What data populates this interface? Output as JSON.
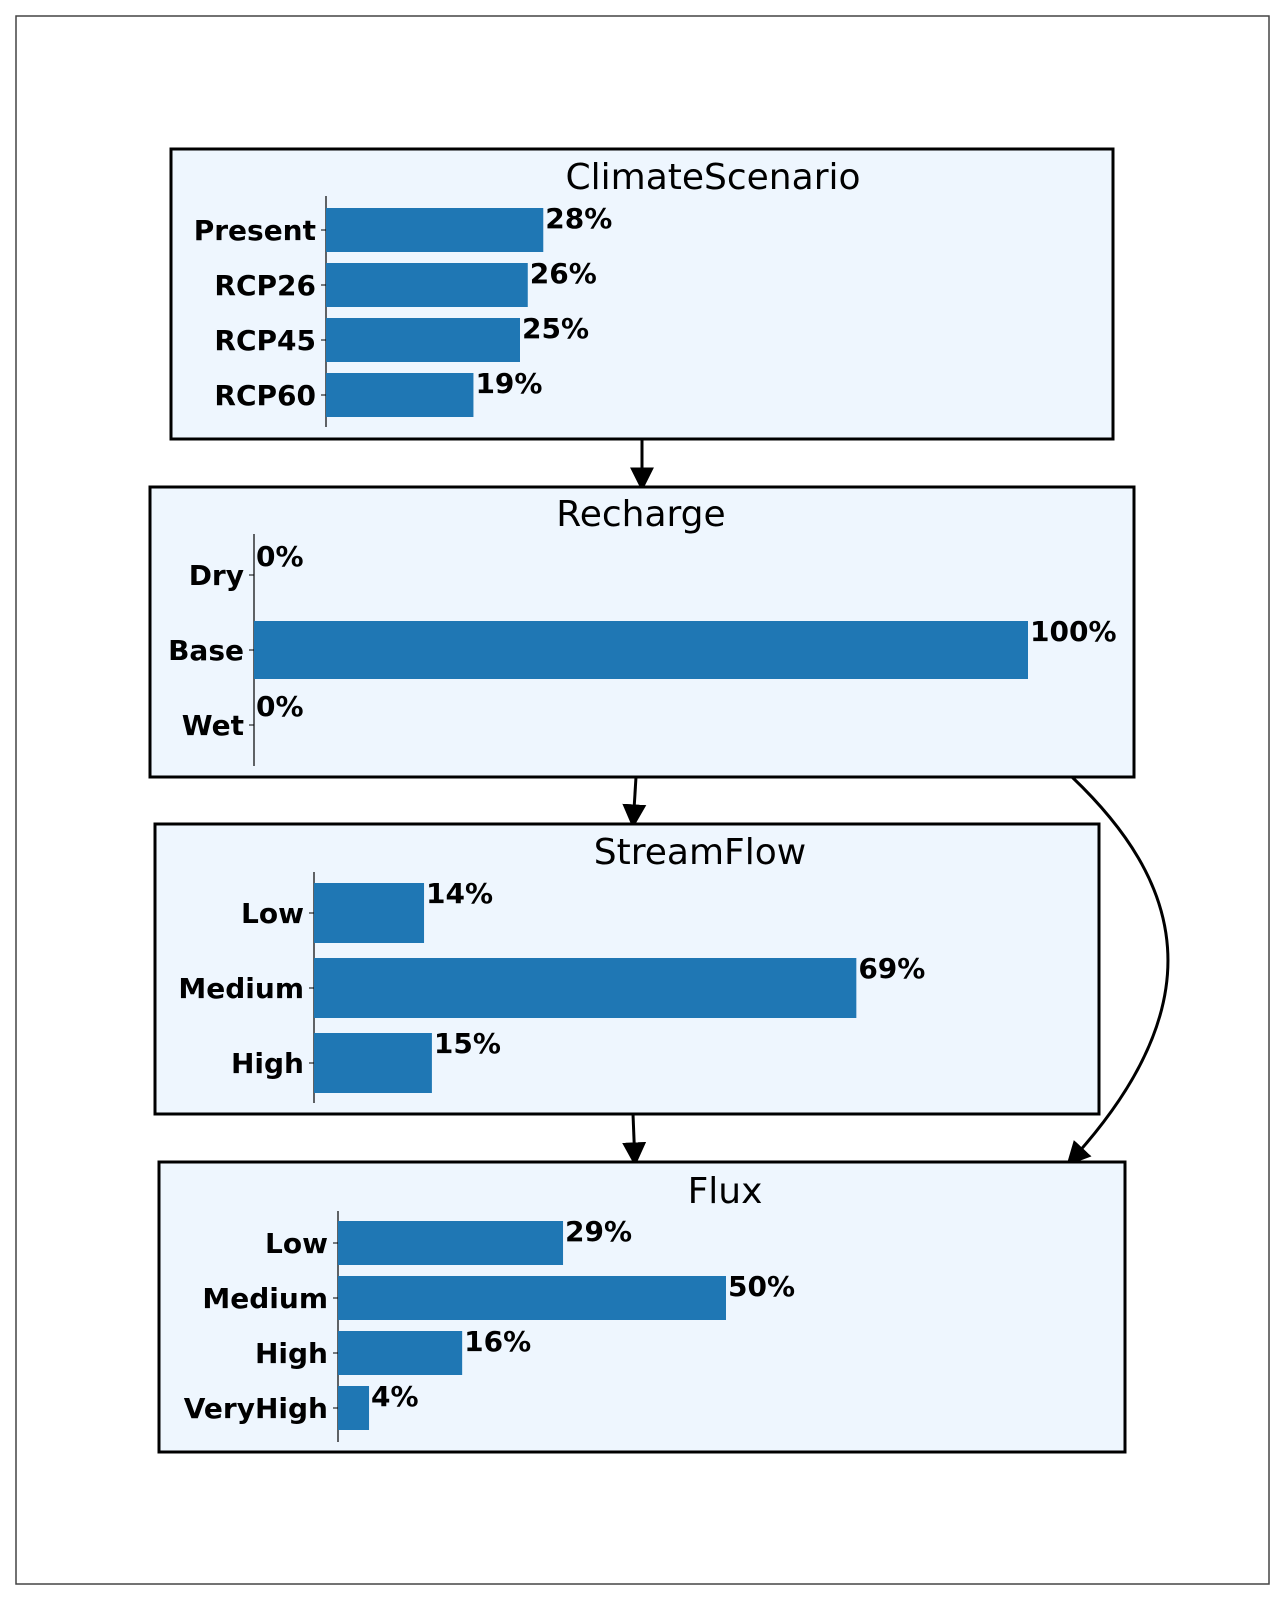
{
  "colors": {
    "bar": "#1f77b4",
    "node_fill": "#eef6fe",
    "node_stroke": "#000000",
    "edge": "#000000"
  },
  "nodes": [
    {
      "id": "climate",
      "title": "ClimateScenario",
      "states": [
        {
          "label": "Present",
          "value": 28,
          "text": "28%"
        },
        {
          "label": "RCP26",
          "value": 26,
          "text": "26%"
        },
        {
          "label": "RCP45",
          "value": 25,
          "text": "25%"
        },
        {
          "label": "RCP60",
          "value": 19,
          "text": "19%"
        }
      ]
    },
    {
      "id": "recharge",
      "title": "Recharge",
      "states": [
        {
          "label": "Dry",
          "value": 0,
          "text": "0%"
        },
        {
          "label": "Base",
          "value": 100,
          "text": "100%"
        },
        {
          "label": "Wet",
          "value": 0,
          "text": "0%"
        }
      ]
    },
    {
      "id": "streamflow",
      "title": "StreamFlow",
      "states": [
        {
          "label": "Low",
          "value": 14,
          "text": "14%"
        },
        {
          "label": "Medium",
          "value": 69,
          "text": "69%"
        },
        {
          "label": "High",
          "value": 15,
          "text": "15%"
        }
      ]
    },
    {
      "id": "flux",
      "title": "Flux",
      "states": [
        {
          "label": "Low",
          "value": 29,
          "text": "29%"
        },
        {
          "label": "Medium",
          "value": 50,
          "text": "50%"
        },
        {
          "label": "High",
          "value": 16,
          "text": "16%"
        },
        {
          "label": "VeryHigh",
          "value": 4,
          "text": "4%"
        }
      ]
    }
  ],
  "edges": [
    {
      "from": "climate",
      "to": "recharge"
    },
    {
      "from": "recharge",
      "to": "streamflow"
    },
    {
      "from": "streamflow",
      "to": "flux"
    },
    {
      "from": "recharge",
      "to": "flux"
    }
  ]
}
